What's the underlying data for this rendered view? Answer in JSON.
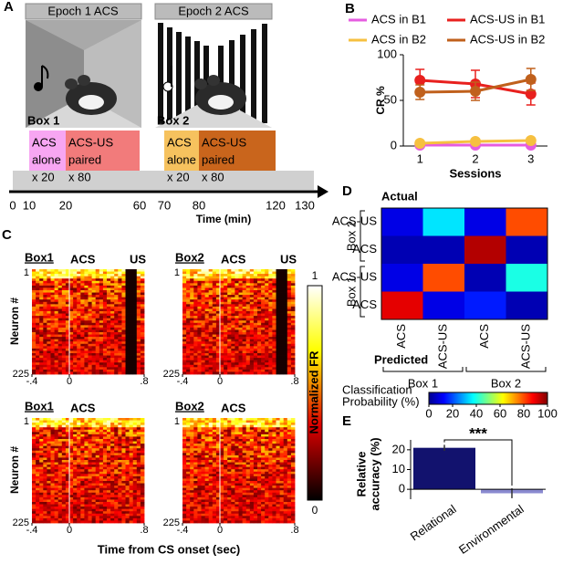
{
  "panel_labels": [
    "A",
    "B",
    "C",
    "D",
    "E"
  ],
  "timeline": {
    "epochs": [
      {
        "title": "Epoch 1 ACS",
        "box": "Box 1"
      },
      {
        "title": "Epoch 2 ACS",
        "box": "Box 2"
      }
    ],
    "phases": [
      {
        "lines": [
          "ACS",
          "alone",
          "x 20"
        ],
        "start": 10,
        "end": 20,
        "color": "#f7a6f2"
      },
      {
        "lines": [
          "ACS-US",
          "paired",
          "x 80"
        ],
        "start": 20,
        "end": 60,
        "color": "#f27b7b"
      },
      {
        "lines": [
          "ACS",
          "alone",
          "x 20"
        ],
        "start": 70,
        "end": 80,
        "color": "#f6c25e"
      },
      {
        "lines": [
          "ACS-US",
          "paired",
          "x 80"
        ],
        "start": 80,
        "end": 120,
        "color": "#c9651c"
      }
    ],
    "xticks": [
      0,
      10,
      20,
      60,
      70,
      80,
      120,
      130
    ],
    "xlabel": "Time (min)"
  },
  "activity": {
    "panels": [
      {
        "box": "Box1",
        "events": [
          "ACS",
          "US"
        ]
      },
      {
        "box": "Box2",
        "events": [
          "ACS",
          "US"
        ]
      },
      {
        "box": "Box1",
        "events": [
          "ACS"
        ]
      },
      {
        "box": "Box2",
        "events": [
          "ACS"
        ]
      }
    ],
    "xlim": [
      -0.4,
      0.8
    ],
    "xticks": [
      {
        "value": -0.4,
        "label": "-.4"
      },
      0,
      {
        "value": 0.8,
        "label": ".8"
      }
    ],
    "yticks": [
      1,
      225
    ],
    "ylabel": "Neuron #",
    "xlabel": "Time from CS onset (sec)",
    "colorbar_label": "Normalized FR",
    "colorbar_ticks": [
      1,
      0
    ]
  },
  "chart_data": [
    {
      "type": "line",
      "ylabel": "CR %",
      "xlabel": "Sessions",
      "xlim": [
        0.7,
        3.3
      ],
      "xticks": [
        1,
        2,
        3
      ],
      "ylim": [
        0,
        100
      ],
      "yticks": [
        0,
        50,
        100
      ],
      "x": [
        1,
        2,
        3
      ],
      "series": [
        {
          "name": "ACS in B1",
          "color": "#e65ce0",
          "values": [
            1,
            1,
            1
          ]
        },
        {
          "name": "ACS-US in B1",
          "color": "#e8201e",
          "values": [
            72,
            68,
            57
          ],
          "errors": [
            12,
            15,
            12
          ]
        },
        {
          "name": "ACS in B2",
          "color": "#f6c040",
          "values": [
            3,
            5,
            6
          ]
        },
        {
          "name": "ACS-US in B2",
          "color": "#c0601c",
          "values": [
            59,
            60,
            73
          ],
          "errors": [
            8,
            10,
            12
          ]
        }
      ]
    },
    {
      "type": "heatmap",
      "row_title": "Actual",
      "col_title": "Predicted",
      "rows": [
        "ACS-US",
        "ACS",
        "ACS-US",
        "ACS"
      ],
      "cols": [
        "ACS",
        "ACS-US",
        "ACS",
        "ACS-US"
      ],
      "row_groups": [
        {
          "label": "Box 2",
          "span": 2
        },
        {
          "label": "Box 1",
          "span": 2
        }
      ],
      "col_groups": [
        {
          "label": "Box 1",
          "span": 2
        },
        {
          "label": "Box 2",
          "span": 2
        }
      ],
      "values": [
        [
          10,
          35,
          10,
          80
        ],
        [
          5,
          5,
          95,
          5
        ],
        [
          10,
          80,
          5,
          40
        ],
        [
          90,
          10,
          15,
          5
        ]
      ],
      "clim": [
        0,
        100
      ],
      "colorbar_label": [
        "Classification",
        "Probability (%)"
      ],
      "colorbar_ticks": [
        0,
        20,
        40,
        60,
        80,
        100
      ]
    },
    {
      "type": "bar",
      "categories": [
        "Relational",
        "Environmental"
      ],
      "values": [
        21,
        -2
      ],
      "errors": [
        1.5,
        2.5
      ],
      "colors": [
        "#12126e",
        "#8a8ad0"
      ],
      "ylabel": [
        "Relative",
        "accuracy (%)"
      ],
      "ylim": [
        -5,
        25
      ],
      "yticks": [
        0,
        10,
        20
      ],
      "annotation": "***"
    }
  ]
}
